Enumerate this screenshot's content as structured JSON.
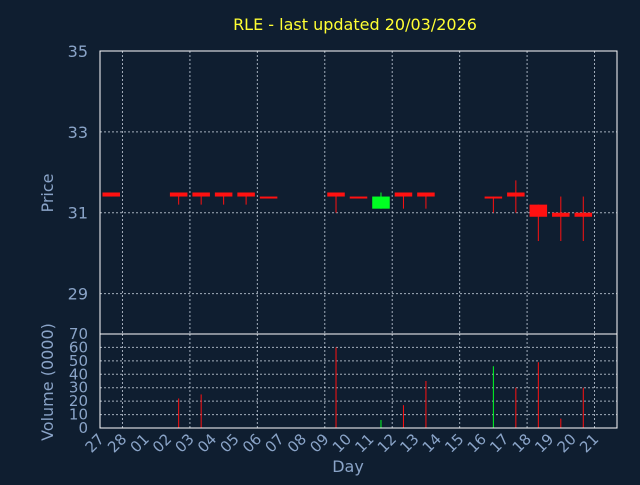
{
  "chart_data": [
    {
      "type": "candlestick",
      "title": "RLE - last updated 20/03/2026",
      "ylabel": "Price",
      "ylim": [
        28,
        35
      ],
      "yticks": [
        "35",
        "33",
        "31",
        "29"
      ],
      "grid": true,
      "up_color": "#00ff22",
      "down_color": "#ff1111",
      "categories": [
        "27",
        "28",
        "01",
        "02",
        "03",
        "04",
        "05",
        "06",
        "07",
        "08",
        "09",
        "10",
        "11",
        "12",
        "13",
        "14",
        "15",
        "16",
        "17",
        "18",
        "19",
        "20",
        "21"
      ],
      "candles": [
        {
          "day": "27",
          "open": 31.5,
          "close": 31.4,
          "high": 31.5,
          "low": 31.4
        },
        {
          "day": "02",
          "open": 31.5,
          "close": 31.4,
          "high": 31.5,
          "low": 31.2
        },
        {
          "day": "03",
          "open": 31.5,
          "close": 31.4,
          "high": 31.5,
          "low": 31.2
        },
        {
          "day": "04",
          "open": 31.5,
          "close": 31.4,
          "high": 31.5,
          "low": 31.2
        },
        {
          "day": "05",
          "open": 31.5,
          "close": 31.4,
          "high": 31.5,
          "low": 31.2
        },
        {
          "day": "06",
          "open": 31.4,
          "close": 31.4,
          "high": 31.4,
          "low": 31.4
        },
        {
          "day": "09",
          "open": 31.5,
          "close": 31.4,
          "high": 31.5,
          "low": 31.0
        },
        {
          "day": "10",
          "open": 31.4,
          "close": 31.4,
          "high": 31.4,
          "low": 31.4
        },
        {
          "day": "11",
          "open": 31.1,
          "close": 31.4,
          "high": 31.5,
          "low": 31.1
        },
        {
          "day": "12",
          "open": 31.5,
          "close": 31.4,
          "high": 31.5,
          "low": 31.1
        },
        {
          "day": "13",
          "open": 31.5,
          "close": 31.4,
          "high": 31.5,
          "low": 31.1
        },
        {
          "day": "16",
          "open": 31.4,
          "close": 31.4,
          "high": 31.4,
          "low": 31.0
        },
        {
          "day": "17",
          "open": 31.5,
          "close": 31.4,
          "high": 31.8,
          "low": 31.0
        },
        {
          "day": "18",
          "open": 31.2,
          "close": 30.9,
          "high": 31.2,
          "low": 30.3
        },
        {
          "day": "19",
          "open": 31.0,
          "close": 30.9,
          "high": 31.4,
          "low": 30.3
        },
        {
          "day": "20",
          "open": 31.0,
          "close": 30.9,
          "high": 31.4,
          "low": 30.3
        }
      ]
    },
    {
      "type": "bar",
      "ylabel": "Volume (0000)",
      "xlabel": "Day",
      "ylim": [
        0,
        70
      ],
      "yticks": [
        "70",
        "60",
        "50",
        "40",
        "30",
        "20",
        "10",
        "0"
      ],
      "grid": true,
      "categories": [
        "27",
        "28",
        "01",
        "02",
        "03",
        "04",
        "05",
        "06",
        "07",
        "08",
        "09",
        "10",
        "11",
        "12",
        "13",
        "14",
        "15",
        "16",
        "17",
        "18",
        "19",
        "20",
        "21"
      ],
      "bars": [
        {
          "day": "02",
          "value": 22,
          "color": "#ff1111"
        },
        {
          "day": "03",
          "value": 25,
          "color": "#ff1111"
        },
        {
          "day": "09",
          "value": 60,
          "color": "#ff1111"
        },
        {
          "day": "11",
          "value": 6,
          "color": "#00ff22"
        },
        {
          "day": "12",
          "value": 17,
          "color": "#ff1111"
        },
        {
          "day": "13",
          "value": 35,
          "color": "#ff1111"
        },
        {
          "day": "16",
          "value": 46,
          "color": "#00ff22"
        },
        {
          "day": "17",
          "value": 30,
          "color": "#ff1111"
        },
        {
          "day": "18",
          "value": 49,
          "color": "#ff1111"
        },
        {
          "day": "19",
          "value": 7,
          "color": "#ff1111"
        },
        {
          "day": "20",
          "value": 30,
          "color": "#ff1111"
        }
      ]
    }
  ],
  "colors": {
    "background": "#0f1e30",
    "title": "#ffff33",
    "label": "#8aa4c8",
    "grid": "#c8d2de"
  }
}
